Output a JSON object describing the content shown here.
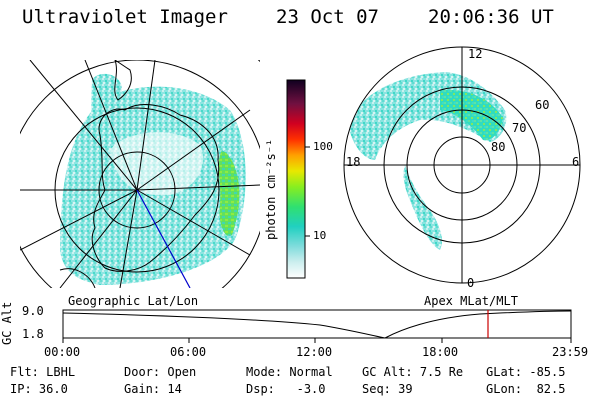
{
  "header": {
    "instrument": "Ultraviolet Imager",
    "date": "23 Oct 07",
    "time": "20:06:36 UT"
  },
  "colorbar": {
    "unit_label": "photon cm⁻²s⁻¹",
    "ticks": [
      "100",
      "10"
    ]
  },
  "left_panel": {
    "caption": "Geographic Lat/Lon"
  },
  "right_panel": {
    "caption": "Apex MLat/MLT",
    "mlt_labels": {
      "top": "12",
      "left": "18",
      "right": "6",
      "bottom": "0"
    },
    "lat_labels": [
      "60",
      "70",
      "80"
    ]
  },
  "altitude_plot": {
    "ylabel": "GC Alt",
    "yticks": [
      "9.0",
      "1.8"
    ],
    "xticks": [
      "00:00",
      "06:00",
      "12:00",
      "18:00",
      "23:59"
    ]
  },
  "status": {
    "row1": [
      {
        "label": "Flt:",
        "value": "LBHL"
      },
      {
        "label": "Door:",
        "value": "Open"
      },
      {
        "label": "Mode:",
        "value": "Normal"
      },
      {
        "label": "GC Alt:",
        "value": "7.5 Re"
      },
      {
        "label": "GLat:",
        "value": "-85.5"
      }
    ],
    "row2": [
      {
        "label": "IP:",
        "value": "36.0"
      },
      {
        "label": "Gain:",
        "value": "14"
      },
      {
        "label": "Dsp:",
        "value": "-3.0"
      },
      {
        "label": "Seq:",
        "value": "39"
      },
      {
        "label": "GLon:",
        "value": "82.5"
      }
    ]
  },
  "colors": {
    "aurora_low": "#7ee0dc",
    "aurora_mid": "#30e0c8",
    "aurora_high": "#66dd44",
    "current_time_marker": "#cc0000",
    "orbit_line": "#0000cc"
  }
}
